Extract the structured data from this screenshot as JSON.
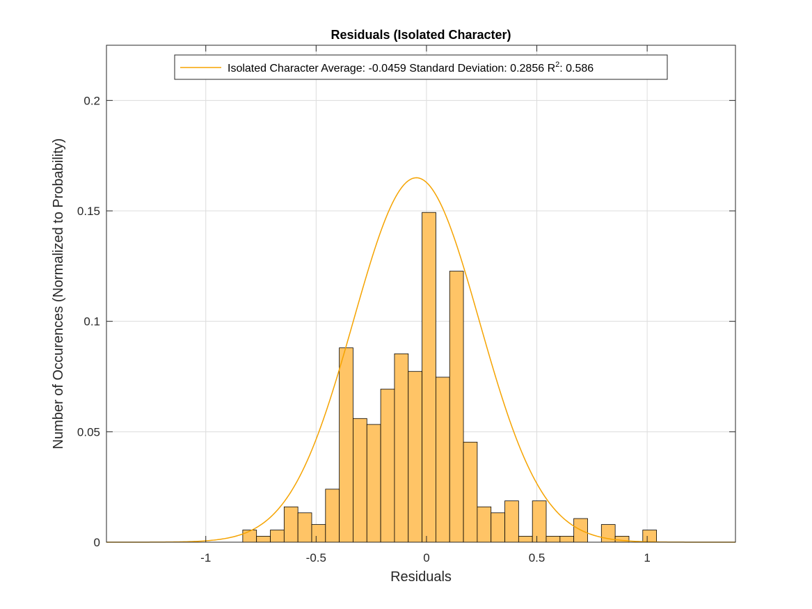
{
  "chart_data": {
    "type": "bar",
    "title": "Residuals (Isolated Character)",
    "xlabel": "Residuals",
    "ylabel": "Number of Occurences (Normalized to Probability)",
    "xlim": [
      -1.45,
      1.4
    ],
    "ylim": [
      0,
      0.225
    ],
    "x_ticks": [
      -1,
      -0.5,
      0,
      0.5,
      1
    ],
    "x_tick_labels": [
      "-1",
      "-0.5",
      "0",
      "0.5",
      "1"
    ],
    "y_ticks": [
      0,
      0.05,
      0.1,
      0.15,
      0.2
    ],
    "y_tick_labels": [
      "0",
      "0.05",
      "0.1",
      "0.15",
      "0.2"
    ],
    "grid": true,
    "legend_position": "top-center",
    "bar_color": "#ffc466",
    "bar_edge_color": "#000000",
    "line_color": "#f5a300",
    "histogram": {
      "bin_edges": [
        -0.8325,
        -0.77,
        -0.7075,
        -0.645,
        -0.5825,
        -0.52,
        -0.4575,
        -0.395,
        -0.3325,
        -0.27,
        -0.2075,
        -0.145,
        -0.0825,
        -0.02,
        0.0425,
        0.105,
        0.1675,
        0.23,
        0.2925,
        0.355,
        0.4175,
        0.48,
        0.5425,
        0.605,
        0.6675,
        0.73,
        0.7925,
        0.855,
        0.9175,
        0.98,
        1.0425
      ],
      "values": [
        0.0055,
        0.0027,
        0.0055,
        0.016,
        0.0133,
        0.008,
        0.024,
        0.088,
        0.056,
        0.0533,
        0.0693,
        0.0853,
        0.0773,
        0.1493,
        0.0747,
        0.1227,
        0.0453,
        0.016,
        0.0133,
        0.0187,
        0.0027,
        0.0187,
        0.0027,
        0.0027,
        0.0107,
        0.0,
        0.008,
        0.0027,
        0.0,
        0.0055
      ]
    },
    "series": [
      {
        "name": "Isolated Character Average: -0.0459 Standard Deviation: 0.2856 R²: 0.586",
        "type": "normal_fit",
        "mean": -0.0459,
        "std": 0.2856,
        "peak": 0.165
      }
    ],
    "legend": {
      "prefix": "Isolated Character Average: -0.0459 Standard Deviation: 0.2856 R",
      "superscript": "2",
      "suffix": ": 0.586"
    }
  }
}
